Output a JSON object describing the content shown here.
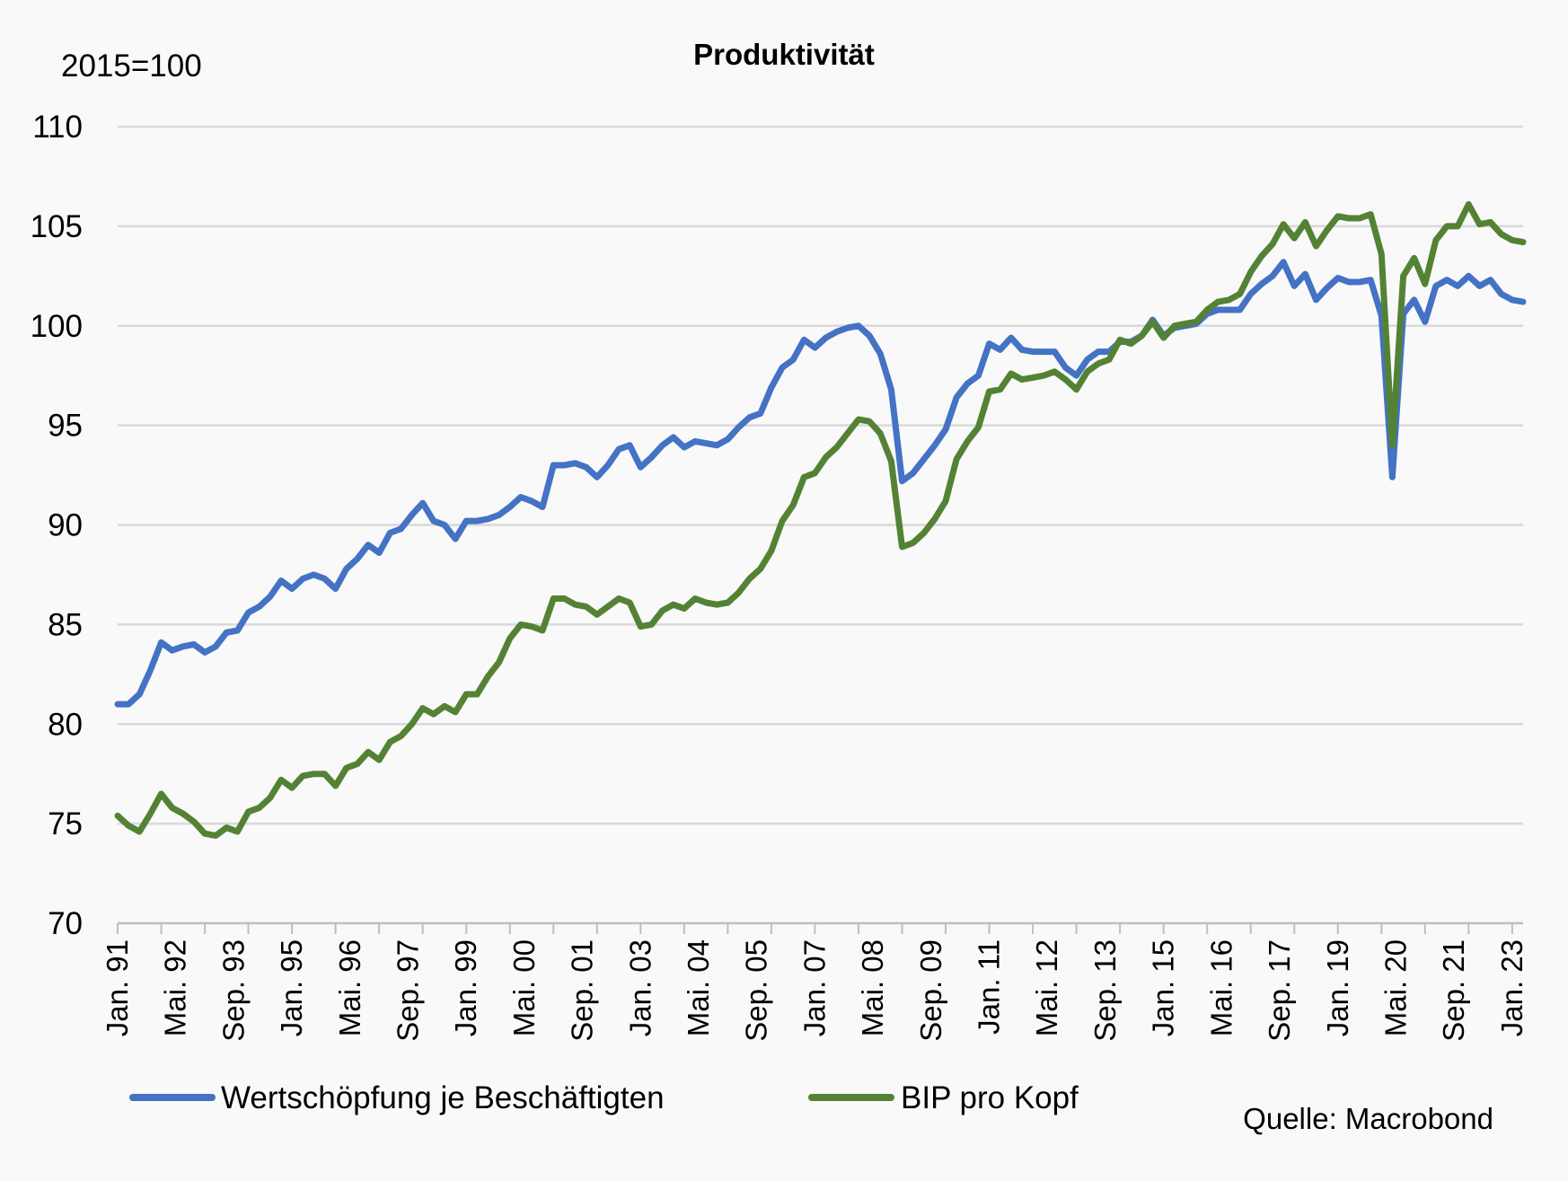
{
  "chart_data": {
    "type": "line",
    "title": "Produktivität",
    "unit_label": "2015=100",
    "source": "Quelle: Macrobond",
    "ylim": [
      70,
      110
    ],
    "yticks": [
      70,
      75,
      80,
      85,
      90,
      95,
      100,
      105,
      110
    ],
    "grid": true,
    "legend_position": "bottom",
    "x_start_label": "Jan. 91",
    "x_end_label": "Jan. 23",
    "x_tick_labels": [
      "Jan. 91",
      "Mai. 92",
      "Sep. 93",
      "Jan. 95",
      "Mai. 96",
      "Sep. 97",
      "Jan. 99",
      "Mai. 00",
      "Sep. 01",
      "Jan. 03",
      "Mai. 04",
      "Sep. 05",
      "Jan. 07",
      "Mai. 08",
      "Sep. 09",
      "Jan. 11",
      "Mai. 12",
      "Sep. 13",
      "Jan. 15",
      "Mai. 16",
      "Sep. 17",
      "Jan. 19",
      "Mai. 20",
      "Sep. 21",
      "Jan. 23"
    ],
    "series": [
      {
        "name": "Wertschöpfung je Beschäftigten",
        "color": "#4472c4",
        "values": [
          81.0,
          81.0,
          81.5,
          82.7,
          84.1,
          83.7,
          83.9,
          84.0,
          83.6,
          83.9,
          84.6,
          84.7,
          85.6,
          85.9,
          86.4,
          87.2,
          86.8,
          87.3,
          87.5,
          87.3,
          86.8,
          87.8,
          88.3,
          89.0,
          88.6,
          89.6,
          89.8,
          90.5,
          91.1,
          90.2,
          90.0,
          89.3,
          90.2,
          90.2,
          90.3,
          90.5,
          90.9,
          91.4,
          91.2,
          90.9,
          93.0,
          93.0,
          93.1,
          92.9,
          92.4,
          93.0,
          93.8,
          94.0,
          92.9,
          93.4,
          94.0,
          94.4,
          93.9,
          94.2,
          94.1,
          94.0,
          94.3,
          94.9,
          95.4,
          95.6,
          96.9,
          97.9,
          98.3,
          99.3,
          98.9,
          99.4,
          99.7,
          99.9,
          100.0,
          99.5,
          98.6,
          96.8,
          92.2,
          92.6,
          93.3,
          94.0,
          94.8,
          96.4,
          97.1,
          97.5,
          99.1,
          98.8,
          99.4,
          98.8,
          98.7,
          98.7,
          98.7,
          97.9,
          97.5,
          98.3,
          98.7,
          98.7,
          99.2,
          99.2,
          99.5,
          100.3,
          99.5,
          99.9,
          100.0,
          100.1,
          100.6,
          100.8,
          100.8,
          100.8,
          101.6,
          102.1,
          102.5,
          103.2,
          102.0,
          102.6,
          101.3,
          101.9,
          102.4,
          102.2,
          102.2,
          102.3,
          100.5,
          92.4,
          100.6,
          101.3,
          100.2,
          102.0,
          102.3,
          102.0,
          102.5,
          102.0,
          102.3,
          101.6,
          101.3,
          101.2
        ]
      },
      {
        "name": "BIP pro Kopf",
        "color": "#548235",
        "values": [
          75.4,
          74.9,
          74.6,
          75.5,
          76.5,
          75.8,
          75.5,
          75.1,
          74.5,
          74.4,
          74.8,
          74.6,
          75.6,
          75.8,
          76.3,
          77.2,
          76.8,
          77.4,
          77.5,
          77.5,
          76.9,
          77.8,
          78.0,
          78.6,
          78.2,
          79.1,
          79.4,
          80.0,
          80.8,
          80.5,
          80.9,
          80.6,
          81.5,
          81.5,
          82.4,
          83.1,
          84.3,
          85.0,
          84.9,
          84.7,
          86.3,
          86.3,
          86.0,
          85.9,
          85.5,
          85.9,
          86.3,
          86.1,
          84.9,
          85.0,
          85.7,
          86.0,
          85.8,
          86.3,
          86.1,
          86.0,
          86.1,
          86.6,
          87.3,
          87.8,
          88.7,
          90.2,
          91.0,
          92.4,
          92.6,
          93.4,
          93.9,
          94.6,
          95.3,
          95.2,
          94.6,
          93.2,
          88.9,
          89.1,
          89.6,
          90.3,
          91.2,
          93.3,
          94.2,
          94.9,
          96.7,
          96.8,
          97.6,
          97.3,
          97.4,
          97.5,
          97.7,
          97.3,
          96.8,
          97.7,
          98.1,
          98.3,
          99.3,
          99.1,
          99.5,
          100.2,
          99.4,
          100.0,
          100.1,
          100.2,
          100.8,
          101.2,
          101.3,
          101.6,
          102.7,
          103.5,
          104.1,
          105.1,
          104.4,
          105.2,
          104.0,
          104.8,
          105.5,
          105.4,
          105.4,
          105.6,
          103.6,
          94.0,
          102.5,
          103.4,
          102.1,
          104.3,
          105.0,
          105.0,
          106.1,
          105.1,
          105.2,
          104.6,
          104.3,
          104.2
        ]
      }
    ]
  }
}
